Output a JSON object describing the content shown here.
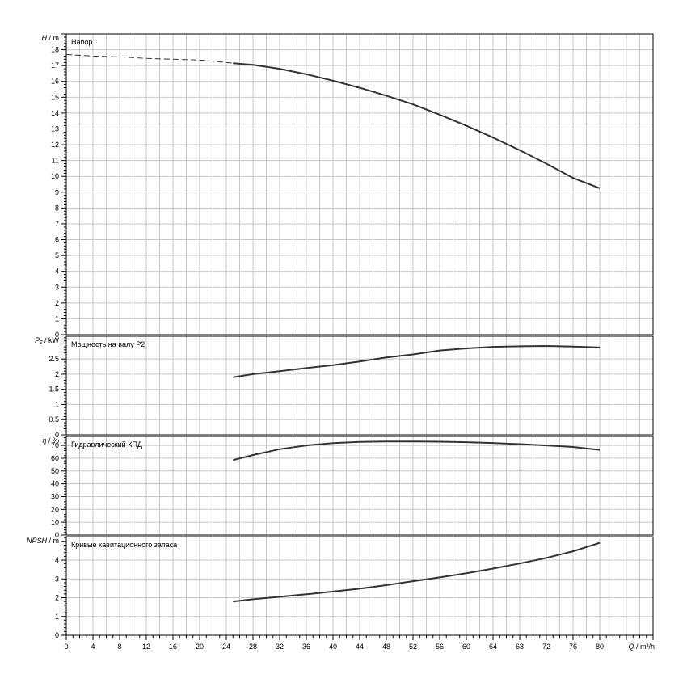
{
  "chart_data": {
    "type": "line",
    "x_axis": {
      "label_symbol": "Q",
      "label_unit": "/ m³/h",
      "min": 0,
      "max": 88,
      "ticks": [
        0,
        4,
        8,
        12,
        16,
        20,
        24,
        28,
        32,
        36,
        40,
        44,
        48,
        52,
        56,
        60,
        64,
        68,
        72,
        76,
        80
      ]
    },
    "panels": [
      {
        "id": "head",
        "title": "Напор",
        "y_symbol": "H",
        "y_unit": "/ m",
        "ylim": [
          0,
          19
        ],
        "yticks": [
          0,
          1,
          2,
          3,
          4,
          5,
          6,
          7,
          8,
          9,
          10,
          11,
          12,
          13,
          14,
          15,
          16,
          17,
          18
        ],
        "dashed": {
          "x": [
            0,
            4,
            8,
            12,
            16,
            20,
            24,
            25
          ],
          "y": [
            17.7,
            17.6,
            17.55,
            17.45,
            17.4,
            17.35,
            17.2,
            17.15
          ]
        },
        "series": {
          "x": [
            25,
            28,
            32,
            36,
            40,
            44,
            48,
            52,
            56,
            60,
            64,
            68,
            72,
            76,
            80
          ],
          "y": [
            17.15,
            17.05,
            16.8,
            16.45,
            16.05,
            15.6,
            15.1,
            14.55,
            13.9,
            13.2,
            12.45,
            11.65,
            10.8,
            9.9,
            9.25
          ]
        }
      },
      {
        "id": "power",
        "title": "Мощность на валу P2",
        "y_symbol": "P₂",
        "y_unit": "/ kW",
        "ylim": [
          0,
          3.25
        ],
        "yticks": [
          0,
          0.5,
          1,
          1.5,
          2,
          2.5
        ],
        "series": {
          "x": [
            25,
            28,
            32,
            36,
            40,
            44,
            48,
            52,
            56,
            60,
            64,
            68,
            72,
            76,
            80
          ],
          "y": [
            1.9,
            2.0,
            2.1,
            2.2,
            2.3,
            2.42,
            2.55,
            2.65,
            2.78,
            2.85,
            2.9,
            2.92,
            2.93,
            2.91,
            2.88
          ]
        }
      },
      {
        "id": "efficiency",
        "title": "Гидравлический КПД",
        "y_symbol": "η",
        "y_unit": "/ %",
        "ylim": [
          0,
          77
        ],
        "yticks": [
          0,
          10,
          20,
          30,
          40,
          50,
          60,
          70
        ],
        "series": {
          "x": [
            25,
            28,
            32,
            36,
            40,
            44,
            48,
            52,
            56,
            60,
            64,
            68,
            72,
            76,
            80
          ],
          "y": [
            58.5,
            62.5,
            67,
            70,
            71.8,
            72.7,
            73,
            73,
            72.9,
            72.5,
            71.9,
            71,
            70,
            68.8,
            66.5
          ]
        }
      },
      {
        "id": "npsh",
        "title": "Кривые кавитационного запаса",
        "y_symbol": "NPSH",
        "y_unit": "/ m",
        "ylim": [
          0,
          5.25
        ],
        "yticks": [
          0,
          1,
          2,
          3,
          4
        ],
        "series": {
          "x": [
            25,
            28,
            32,
            36,
            40,
            44,
            48,
            52,
            56,
            60,
            64,
            68,
            72,
            76,
            80
          ],
          "y": [
            1.8,
            1.92,
            2.05,
            2.18,
            2.33,
            2.48,
            2.67,
            2.88,
            3.08,
            3.3,
            3.55,
            3.82,
            4.12,
            4.47,
            4.92
          ]
        }
      }
    ],
    "grid": true
  }
}
